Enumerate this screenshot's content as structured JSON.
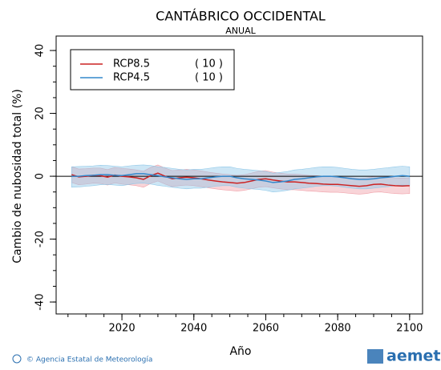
{
  "chart_data": {
    "type": "line",
    "title": "CANTÁBRICO OCCIDENTAL",
    "subtitle": "ANUAL",
    "xlabel": "Año",
    "ylabel": "Cambio de nubosidad total (%)",
    "footer": "© Agencia Estatal de Meteorología",
    "logo": "aemet",
    "xlim": [
      2001.7,
      2103.6
    ],
    "xticks": [
      2020,
      2040,
      2060,
      2080,
      2100
    ],
    "ylim": [
      -43.8,
      44.6
    ],
    "yticks": [
      -40,
      -20,
      0,
      20,
      40
    ],
    "hline": 0,
    "legend": "upper-left",
    "x": [
      2006,
      2008,
      2010,
      2012,
      2014,
      2016,
      2018,
      2020,
      2022,
      2024,
      2026,
      2028,
      2030,
      2032,
      2034,
      2036,
      2038,
      2040,
      2042,
      2044,
      2046,
      2048,
      2050,
      2052,
      2054,
      2056,
      2058,
      2060,
      2062,
      2064,
      2066,
      2068,
      2070,
      2072,
      2074,
      2076,
      2078,
      2080,
      2082,
      2084,
      2086,
      2088,
      2090,
      2092,
      2094,
      2096,
      2098,
      2100
    ],
    "series": [
      {
        "name": "RCP8.5",
        "count_label": "( 10 )",
        "color": "#cc2222",
        "band_color": "#f0a0a8",
        "values": [
          0.5,
          -0.2,
          0,
          0.3,
          0.2,
          -0.3,
          0.4,
          0,
          -0.2,
          -0.5,
          -1,
          0.2,
          1,
          0,
          -0.8,
          -0.5,
          -0.3,
          -0.5,
          -0.8,
          -1.2,
          -1.5,
          -1.8,
          -2,
          -2.2,
          -2,
          -1.5,
          -1,
          -0.8,
          -1.2,
          -1.5,
          -1.8,
          -1.8,
          -2,
          -2.2,
          -2.3,
          -2.5,
          -2.6,
          -2.6,
          -2.8,
          -3,
          -3.2,
          -3,
          -2.6,
          -2.5,
          -2.8,
          -3,
          -3.1,
          -3
        ],
        "upper": [
          3,
          2.3,
          2.4,
          2.6,
          2.6,
          2.1,
          2.8,
          2.5,
          2.3,
          2,
          1.6,
          2.8,
          3.6,
          2.6,
          1.8,
          2,
          2.2,
          2,
          1.7,
          1.3,
          1,
          0.7,
          0.5,
          0.3,
          0.5,
          1,
          1.6,
          1.8,
          1.3,
          1,
          0.7,
          0.7,
          0.5,
          0.3,
          0.2,
          0,
          -0.1,
          -0.1,
          -0.3,
          -0.5,
          -0.7,
          -0.5,
          -0.1,
          0,
          -0.3,
          -0.5,
          -0.6,
          -0.5
        ],
        "lower": [
          -2,
          -2.7,
          -2.5,
          -2.2,
          -2.3,
          -2.8,
          -2.1,
          -2.5,
          -2.7,
          -3,
          -3.5,
          -2.3,
          -1.5,
          -2.5,
          -3.3,
          -3,
          -2.8,
          -3,
          -3.3,
          -3.7,
          -4,
          -4.3,
          -4.5,
          -4.7,
          -4.5,
          -4,
          -3.5,
          -3.3,
          -3.7,
          -4,
          -4.3,
          -4.3,
          -4.5,
          -4.7,
          -4.8,
          -5,
          -5.1,
          -5.1,
          -5.3,
          -5.5,
          -5.7,
          -5.5,
          -5.1,
          -5,
          -5.3,
          -5.5,
          -5.6,
          -5.5
        ]
      },
      {
        "name": "RCP4.5",
        "count_label": "( 10 )",
        "color": "#3388cc",
        "band_color": "#90c8e8",
        "values": [
          0,
          0,
          0.2,
          0.3,
          0.5,
          0.5,
          0.3,
          0.2,
          0.5,
          0.8,
          0.8,
          0.5,
          0.2,
          -0.2,
          -0.5,
          -0.8,
          -1,
          -0.8,
          -0.8,
          -0.5,
          -0.2,
          0,
          0,
          -0.5,
          -0.8,
          -1,
          -1.2,
          -1.5,
          -2,
          -1.8,
          -1.5,
          -1,
          -0.8,
          -0.5,
          -0.2,
          0,
          0,
          -0.2,
          -0.5,
          -0.8,
          -1,
          -1,
          -0.8,
          -0.5,
          -0.3,
          0,
          0.2,
          0
        ],
        "upper": [
          3,
          3.1,
          3.2,
          3.3,
          3.5,
          3.4,
          3.2,
          3,
          3.3,
          3.5,
          3.6,
          3.4,
          3,
          2.8,
          2.5,
          2.2,
          2,
          2.2,
          2.2,
          2.5,
          2.8,
          3,
          3,
          2.5,
          2.2,
          2,
          1.8,
          1.5,
          1,
          1.2,
          1.5,
          2,
          2.2,
          2.5,
          2.8,
          3,
          3,
          2.8,
          2.5,
          2.2,
          2,
          2,
          2.2,
          2.5,
          2.7,
          3,
          3.2,
          3
        ],
        "lower": [
          -3.5,
          -3.4,
          -3.2,
          -3,
          -2.7,
          -2.6,
          -2.8,
          -3,
          -2.6,
          -2.3,
          -2.2,
          -2.5,
          -2.9,
          -3.2,
          -3.5,
          -3.8,
          -4,
          -3.8,
          -3.8,
          -3.5,
          -3.2,
          -3,
          -3,
          -3.5,
          -3.8,
          -4,
          -4.2,
          -4.5,
          -5,
          -4.8,
          -4.5,
          -4,
          -3.8,
          -3.5,
          -3.2,
          -3,
          -3,
          -3.2,
          -3.5,
          -3.8,
          -4,
          -4,
          -3.8,
          -3.5,
          -3.3,
          -3,
          -2.8,
          -3
        ]
      }
    ]
  }
}
